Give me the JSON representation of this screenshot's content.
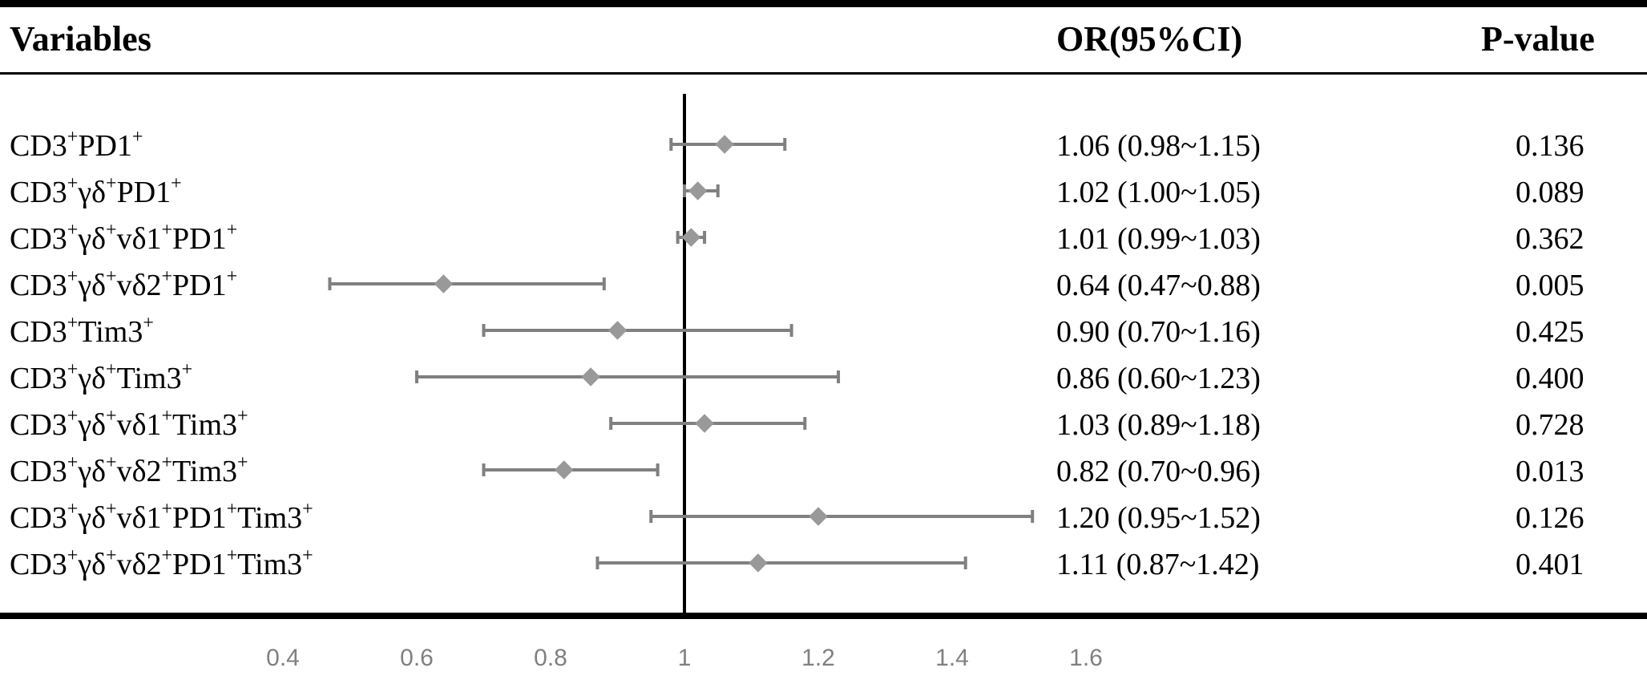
{
  "header": {
    "variables": "Variables",
    "or": "OR(95%CI)",
    "pvalue": "P-value"
  },
  "colors": {
    "rule": "#000000",
    "marker": "#999999",
    "whisker": "#808080",
    "tick_text": "#808080",
    "text": "#000000"
  },
  "chart_data": {
    "type": "forest",
    "reference_line": 1,
    "xlim": [
      0.3,
      1.7
    ],
    "xticks": [
      "0.4",
      "0.6",
      "0.8",
      "1",
      "1.2",
      "1.4",
      "1.6"
    ],
    "rows": [
      {
        "label": [
          "CD3",
          "+",
          "PD1",
          "+"
        ],
        "or": 1.06,
        "lo": 0.98,
        "hi": 1.15,
        "or_text": "1.06 (0.98~1.15)",
        "p": "0.136"
      },
      {
        "label": [
          "CD3",
          "+",
          "γδ",
          "+",
          "PD1",
          "+"
        ],
        "or": 1.02,
        "lo": 1.0,
        "hi": 1.05,
        "or_text": "1.02 (1.00~1.05)",
        "p": "0.089"
      },
      {
        "label": [
          "CD3",
          "+",
          "γδ",
          "+",
          "vδ1",
          "+",
          "PD1",
          "+"
        ],
        "or": 1.01,
        "lo": 0.99,
        "hi": 1.03,
        "or_text": "1.01 (0.99~1.03)",
        "p": "0.362"
      },
      {
        "label": [
          "CD3",
          "+",
          "γδ",
          "+",
          "vδ2",
          "+",
          "PD1",
          "+"
        ],
        "or": 0.64,
        "lo": 0.47,
        "hi": 0.88,
        "or_text": "0.64 (0.47~0.88)",
        "p": "0.005"
      },
      {
        "label": [
          "CD3",
          "+",
          "Tim3",
          "+"
        ],
        "or": 0.9,
        "lo": 0.7,
        "hi": 1.16,
        "or_text": "0.90 (0.70~1.16)",
        "p": "0.425"
      },
      {
        "label": [
          "CD3",
          "+",
          "γδ",
          "+",
          "Tim3",
          "+"
        ],
        "or": 0.86,
        "lo": 0.6,
        "hi": 1.23,
        "or_text": "0.86 (0.60~1.23)",
        "p": "0.400"
      },
      {
        "label": [
          "CD3",
          "+",
          "γδ",
          "+",
          "vδ1",
          "+",
          "Tim3",
          "+"
        ],
        "or": 1.03,
        "lo": 0.89,
        "hi": 1.18,
        "or_text": "1.03 (0.89~1.18)",
        "p": "0.728"
      },
      {
        "label": [
          "CD3",
          "+",
          "γδ",
          "+",
          "vδ2",
          "+",
          "Tim3",
          "+"
        ],
        "or": 0.82,
        "lo": 0.7,
        "hi": 0.96,
        "or_text": "0.82 (0.70~0.96)",
        "p": "0.013"
      },
      {
        "label": [
          "CD3",
          "+",
          "γδ",
          "+",
          "vδ1",
          "+",
          "PD1",
          "+",
          "Tim3",
          "+"
        ],
        "or": 1.2,
        "lo": 0.95,
        "hi": 1.52,
        "or_text": "1.20 (0.95~1.52)",
        "p": "0.126"
      },
      {
        "label": [
          "CD3",
          "+",
          "γδ",
          "+",
          "vδ2",
          "+",
          "PD1",
          "+",
          "Tim3",
          "+"
        ],
        "or": 1.11,
        "lo": 0.87,
        "hi": 1.42,
        "or_text": "1.11 (0.87~1.42)",
        "p": "0.401"
      }
    ]
  }
}
